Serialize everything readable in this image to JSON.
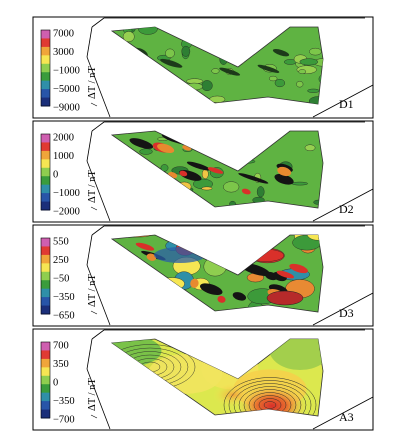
{
  "panels": [
    {
      "id": "D1",
      "label": "D1",
      "colorbar_label": "ΔT / nT",
      "colorbar_ticks": [
        "7000",
        "3000",
        "−1000",
        "−5000",
        "−9000"
      ],
      "colorbar_colors": [
        "#cf5fb0",
        "#e03a33",
        "#f0a53a",
        "#f6e653",
        "#8fce4f",
        "#3a9c3c",
        "#2f8fa8",
        "#2855a8",
        "#1b2f7a"
      ]
    },
    {
      "id": "D2",
      "label": "D2",
      "colorbar_label": "ΔT / nT",
      "colorbar_ticks": [
        "2000",
        "1000",
        "0",
        "−1000",
        "−2000"
      ],
      "colorbar_colors": [
        "#cf5fb0",
        "#e03a33",
        "#f0a53a",
        "#f6e653",
        "#8fce4f",
        "#3a9c3c",
        "#2f8fa8",
        "#2855a8",
        "#1b2f7a"
      ]
    },
    {
      "id": "D3",
      "label": "D3",
      "colorbar_label": "ΔT / nT",
      "colorbar_ticks": [
        "550",
        "250",
        "−50",
        "−350",
        "−650"
      ],
      "colorbar_colors": [
        "#cf5fb0",
        "#e03a33",
        "#f0a53a",
        "#f6e653",
        "#8fce4f",
        "#3a9c3c",
        "#2f8fa8",
        "#2855a8",
        "#1b2f7a"
      ]
    },
    {
      "id": "A3",
      "label": "A3",
      "colorbar_label": "ΔT / nT",
      "colorbar_ticks": [
        "700",
        "350",
        "0",
        "−350",
        "−700"
      ],
      "colorbar_colors": [
        "#cf5fb0",
        "#e03a33",
        "#f0a53a",
        "#f6e653",
        "#8fce4f",
        "#3a9c3c",
        "#2f8fa8",
        "#2855a8",
        "#1b2f7a"
      ]
    }
  ]
}
